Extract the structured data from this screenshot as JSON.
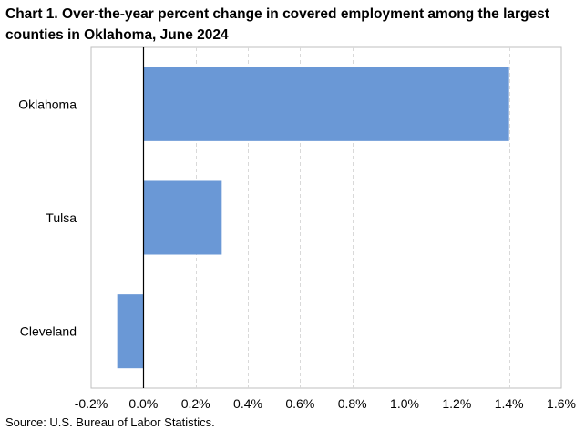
{
  "chart_data": {
    "type": "bar",
    "orientation": "horizontal",
    "title": "Chart 1. Over-the-year percent change in covered employment among the largest counties in Oklahoma, June 2024",
    "categories": [
      "Oklahoma",
      "Tulsa",
      "Cleveland"
    ],
    "series": [
      {
        "values": [
          1.4,
          0.3,
          -0.1
        ],
        "color": "#6A98D6"
      }
    ],
    "xlabel": "",
    "ylabel": "",
    "xlim": [
      -0.2,
      1.6
    ],
    "xticks": [
      -0.2,
      0.0,
      0.2,
      0.4,
      0.6,
      0.8,
      1.0,
      1.2,
      1.4,
      1.6
    ],
    "xtick_labels": [
      "-0.2%",
      "0.0%",
      "0.2%",
      "0.4%",
      "0.6%",
      "0.8%",
      "1.0%",
      "1.2%",
      "1.4%",
      "1.6%"
    ],
    "grid": "vertical dashed",
    "legend": "none",
    "source": "Source: U.S. Bureau of Labor Statistics."
  }
}
